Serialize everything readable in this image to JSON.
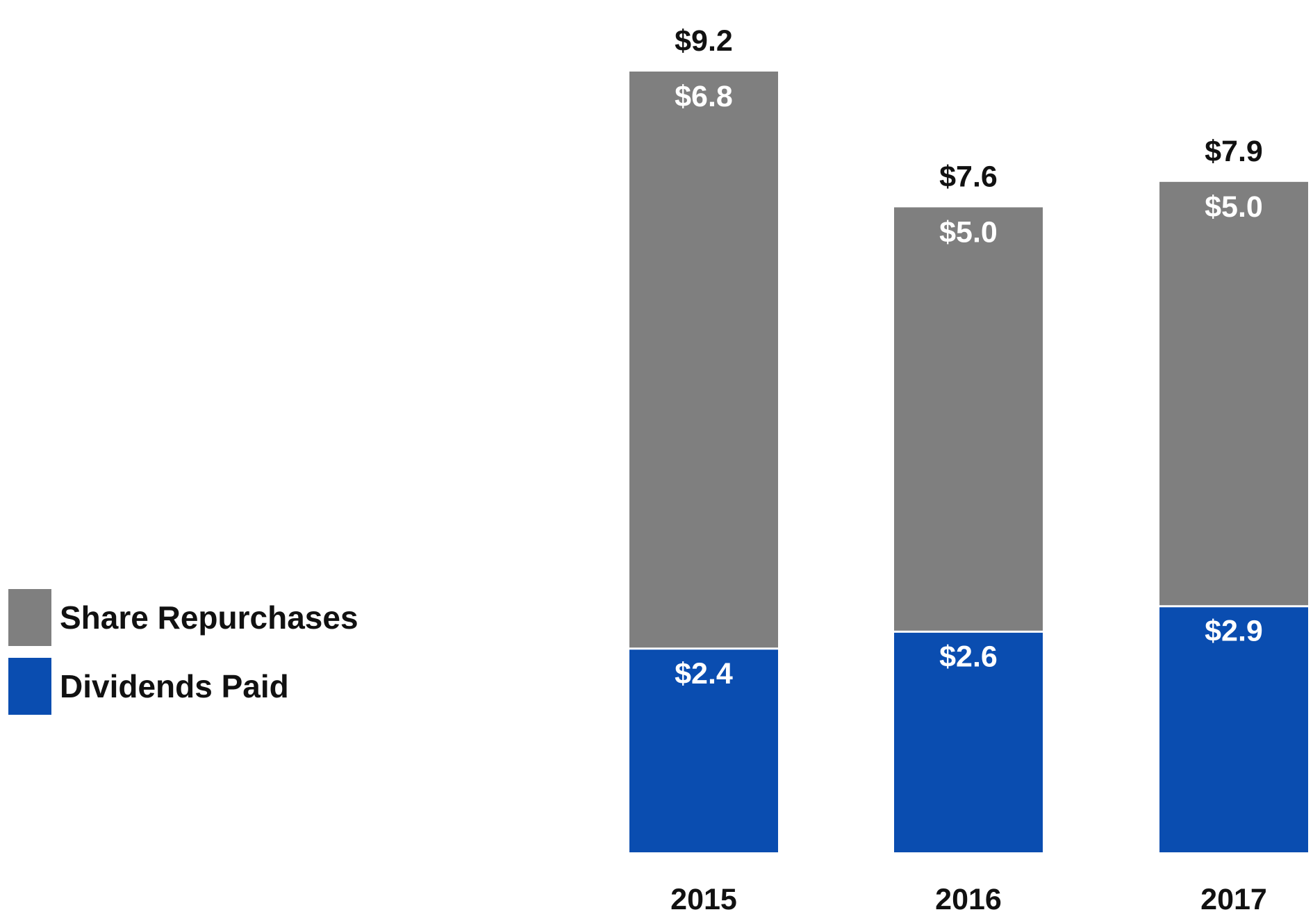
{
  "chart_data": {
    "type": "bar",
    "stacked": true,
    "categories": [
      "2015",
      "2016",
      "2017"
    ],
    "series": [
      {
        "name": "Dividends Paid",
        "values": [
          2.4,
          2.6,
          2.9
        ],
        "labels": [
          "$2.4",
          "$2.6",
          "$2.9"
        ],
        "color": "#0a4db0"
      },
      {
        "name": "Share Repurchases",
        "values": [
          6.8,
          5.0,
          5.0
        ],
        "labels": [
          "$6.8",
          "$5.0",
          "$5.0"
        ],
        "color": "#7f7f7f"
      }
    ],
    "totals": [
      9.2,
      7.6,
      7.9
    ],
    "total_labels": [
      "$9.2",
      "$7.6",
      "$7.9"
    ],
    "title": "",
    "xlabel": "",
    "ylabel": "",
    "ylim": [
      0,
      9.2
    ],
    "grid": false,
    "legend_position": "left"
  },
  "legend": {
    "items": [
      {
        "label": "Share Repurchases",
        "color": "#7f7f7f"
      },
      {
        "label": "Dividends Paid",
        "color": "#0a4db0"
      }
    ]
  }
}
